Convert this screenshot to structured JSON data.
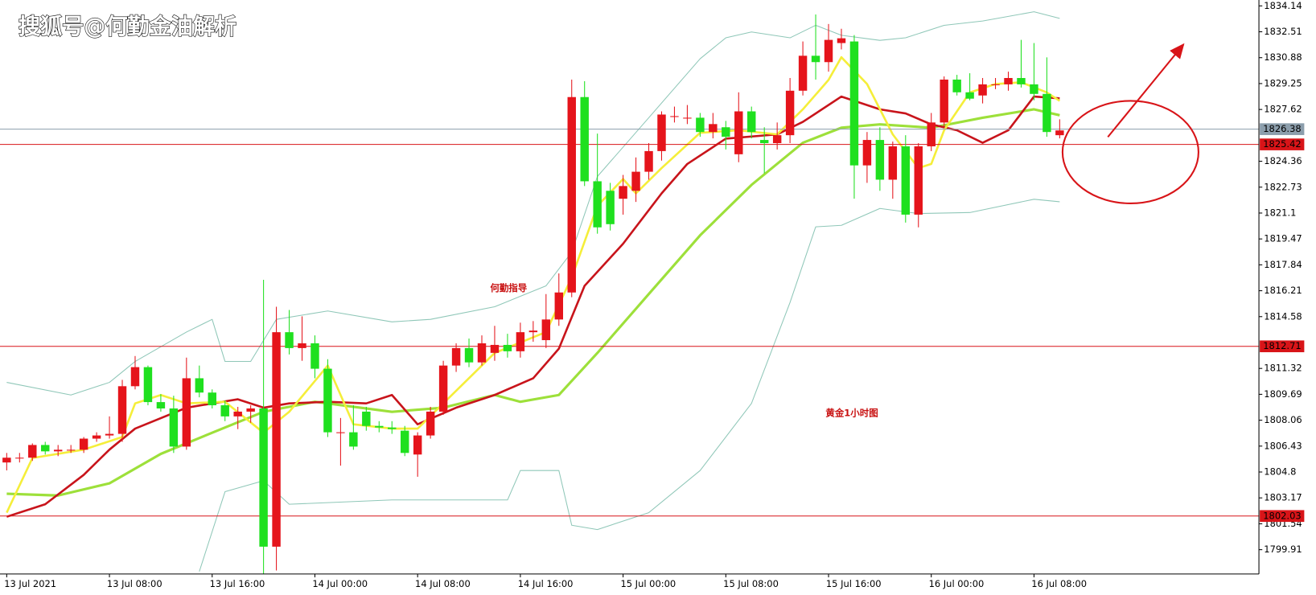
{
  "chart_data": {
    "type": "candlestick",
    "watermark": "搜狐号@何勤金油解析",
    "annotations": [
      "何勤指导",
      "黄金1小时图"
    ],
    "categories": [
      "13 Jul 2021",
      null,
      null,
      null,
      null,
      null,
      null,
      null,
      "13 Jul 08:00",
      null,
      null,
      null,
      null,
      null,
      null,
      null,
      "13 Jul 16:00",
      null,
      null,
      null,
      null,
      null,
      null,
      null,
      "14 Jul 00:00",
      null,
      null,
      null,
      null,
      null,
      null,
      null,
      "14 Jul 08:00",
      null,
      null,
      null,
      null,
      null,
      null,
      null,
      "14 Jul 16:00",
      null,
      null,
      null,
      null,
      null,
      null,
      null,
      "15 Jul 00:00",
      null,
      null,
      null,
      null,
      null,
      null,
      null,
      "15 Jul 08:00",
      null,
      null,
      null,
      null,
      null,
      null,
      null,
      "15 Jul 16:00",
      null,
      null,
      null,
      null,
      null,
      null,
      null,
      "16 Jul 00:00",
      null,
      null,
      null,
      null,
      null,
      null,
      null,
      "16 Jul 08:00",
      null,
      null
    ],
    "open": [
      1805.4,
      1805.7,
      1805.7,
      1806.5,
      1806.1,
      1806.2,
      1806.2,
      1806.9,
      1807.1,
      1807.2,
      1810.2,
      1811.4,
      1809.2,
      1808.8,
      1806.4,
      1810.7,
      1809.8,
      1809.0,
      1808.3,
      1808.6,
      1808.8,
      1800.1,
      1813.6,
      1812.6,
      1812.9,
      1811.3,
      1807.3,
      1807.3,
      1808.6,
      1807.7,
      1807.6,
      1807.4,
      1805.9,
      1807.1,
      1808.6,
      1811.5,
      1812.6,
      1811.7,
      1812.3,
      1812.8,
      1812.4,
      1813.6,
      1813.1,
      1814.4,
      1816.1,
      1828.4,
      1823.1,
      1822.5,
      1822.0,
      1822.5,
      1823.7,
      1825.0,
      1827.2,
      1827.1,
      1827.1,
      1826.2,
      1826.5,
      1824.8,
      1827.5,
      1825.7,
      1825.5,
      1826.0,
      1828.8,
      1831.0,
      1830.6,
      1831.8,
      1831.9,
      1824.1,
      1825.7,
      1823.2,
      1825.3,
      1821.0,
      1825.3,
      1826.8,
      1829.5,
      1828.7,
      1828.5,
      1829.2,
      1829.2,
      1829.6,
      1829.2,
      1828.6,
      1826.0
    ],
    "high": [
      1806.0,
      1806.0,
      1806.6,
      1806.7,
      1806.5,
      1806.5,
      1807.0,
      1807.3,
      1808.3,
      1810.6,
      1812.1,
      1811.5,
      1809.7,
      1809.6,
      1812.0,
      1811.5,
      1810.0,
      1809.3,
      1808.9,
      1809.0,
      1816.9,
      1815.2,
      1815.0,
      1814.6,
      1813.4,
      1811.9,
      1808.2,
      1809.0,
      1808.9,
      1808.0,
      1808.0,
      1807.7,
      1807.3,
      1808.9,
      1811.8,
      1812.9,
      1813.2,
      1813.4,
      1814.0,
      1813.5,
      1814.2,
      1814.3,
      1816.0,
      1817.3,
      1829.5,
      1829.4,
      1826.1,
      1823.0,
      1823.5,
      1824.6,
      1825.5,
      1827.5,
      1827.8,
      1827.9,
      1827.4,
      1827.4,
      1826.9,
      1828.7,
      1827.8,
      1826.5,
      1826.8,
      1829.6,
      1831.9,
      1833.6,
      1833.0,
      1832.7,
      1832.3,
      1826.2,
      1826.5,
      1825.6,
      1826.0,
      1825.5,
      1827.4,
      1829.7,
      1829.8,
      1829.9,
      1829.6,
      1829.6,
      1830.0,
      1832.0,
      1831.8,
      1830.9,
      1827.0
    ],
    "low": [
      1804.9,
      1805.4,
      1805.5,
      1805.9,
      1805.8,
      1806.0,
      1806.0,
      1806.7,
      1806.9,
      1806.7,
      1810.0,
      1809.0,
      1808.6,
      1806.0,
      1806.2,
      1809.5,
      1808.8,
      1808.0,
      1807.5,
      1807.9,
      1798.4,
      1798.6,
      1812.2,
      1811.8,
      1810.7,
      1807.0,
      1805.2,
      1806.2,
      1807.4,
      1807.3,
      1807.2,
      1805.8,
      1804.5,
      1806.9,
      1808.4,
      1811.1,
      1811.4,
      1811.5,
      1811.8,
      1812.0,
      1812.0,
      1813.0,
      1812.6,
      1814.0,
      1815.8,
      1822.8,
      1819.8,
      1820.0,
      1821.0,
      1821.8,
      1823.2,
      1824.4,
      1826.8,
      1826.7,
      1825.9,
      1825.8,
      1825.1,
      1824.3,
      1825.8,
      1823.6,
      1825.1,
      1825.5,
      1828.5,
      1829.5,
      1830.0,
      1831.4,
      1822.0,
      1823.0,
      1822.5,
      1822.0,
      1820.5,
      1820.2,
      1825.0,
      1826.5,
      1828.5,
      1828.2,
      1828.0,
      1828.9,
      1828.8,
      1829.0,
      1828.2,
      1825.9,
      1825.8
    ],
    "close": [
      1805.7,
      1805.7,
      1806.5,
      1806.1,
      1806.2,
      1806.2,
      1806.9,
      1807.1,
      1807.2,
      1810.2,
      1811.4,
      1809.2,
      1808.8,
      1806.4,
      1810.7,
      1809.8,
      1809.0,
      1808.3,
      1808.6,
      1808.8,
      1800.1,
      1813.6,
      1812.6,
      1812.9,
      1811.3,
      1807.3,
      1807.3,
      1806.4,
      1807.7,
      1807.6,
      1807.5,
      1806.0,
      1807.1,
      1808.6,
      1811.5,
      1812.6,
      1811.7,
      1812.9,
      1812.8,
      1812.4,
      1813.6,
      1813.7,
      1814.4,
      1816.1,
      1828.4,
      1823.1,
      1820.2,
      1820.4,
      1822.8,
      1823.7,
      1825.0,
      1827.3,
      1827.2,
      1827.1,
      1826.2,
      1826.7,
      1825.9,
      1827.5,
      1826.2,
      1825.5,
      1826.0,
      1828.8,
      1831.0,
      1830.6,
      1832.0,
      1832.1,
      1824.1,
      1825.7,
      1823.2,
      1825.3,
      1821.0,
      1825.3,
      1826.8,
      1829.5,
      1828.7,
      1828.3,
      1829.2,
      1829.2,
      1829.6,
      1829.2,
      1828.6,
      1826.2,
      1826.3
    ],
    "up_color": "#e5141b",
    "down_color": "#1fe01f",
    "overlays": [
      {
        "color": "#8fc7b8",
        "width": 1,
        "x": [
          0,
          5,
          8,
          10,
          14,
          16,
          17,
          19,
          21,
          25,
          30,
          33,
          38,
          42,
          44,
          46,
          50,
          54,
          56,
          58,
          61,
          63,
          65,
          68,
          70,
          73,
          76,
          80,
          82
        ],
        "values": [
          1810.44,
          1809.65,
          1810.44,
          1811.76,
          1813.61,
          1814.41,
          1811.76,
          1811.76,
          1814.41,
          1814.94,
          1814.25,
          1814.41,
          1815.2,
          1816.52,
          1818.64,
          1823.4,
          1827.1,
          1830.81,
          1832.13,
          1832.5,
          1832.13,
          1832.92,
          1832.29,
          1831.97,
          1832.13,
          1832.92,
          1833.19,
          1833.77,
          1833.35
        ]
      },
      {
        "color": "#8fc7b8",
        "width": 1,
        "x": [
          15,
          17,
          20,
          22,
          30,
          35,
          39,
          40,
          43,
          44,
          46,
          50,
          54,
          58,
          61,
          63,
          65,
          68,
          71,
          75,
          80,
          82
        ],
        "values": [
          1798.54,
          1803.56,
          1804.25,
          1802.77,
          1803.04,
          1803.04,
          1803.04,
          1804.89,
          1804.89,
          1801.45,
          1801.18,
          1802.24,
          1804.89,
          1809.12,
          1815.47,
          1820.23,
          1820.33,
          1821.39,
          1821.07,
          1821.13,
          1821.97,
          1821.81
        ]
      },
      {
        "color": "#9de03a",
        "width": 3,
        "x": [
          0,
          4,
          8,
          12,
          16,
          20,
          24,
          30,
          34,
          38,
          40,
          43,
          46,
          50,
          54,
          58,
          62,
          65,
          68,
          72,
          76,
          80,
          82
        ],
        "values": [
          1803.43,
          1803.32,
          1804.09,
          1805.94,
          1807.27,
          1808.59,
          1809.22,
          1808.59,
          1808.85,
          1809.65,
          1809.22,
          1809.65,
          1812.29,
          1816.0,
          1819.7,
          1822.87,
          1825.52,
          1826.47,
          1826.68,
          1826.47,
          1827.1,
          1827.63,
          1827.26
        ]
      },
      {
        "color": "#c8141b",
        "width": 2.5,
        "x": [
          0,
          3,
          6,
          8,
          10,
          14,
          18,
          20,
          22,
          25,
          28,
          30,
          32,
          35,
          38,
          41,
          43,
          45,
          48,
          51,
          53,
          56,
          60,
          62,
          65,
          68,
          70,
          72,
          74,
          76,
          78,
          80,
          82
        ],
        "values": [
          1801.98,
          1802.77,
          1804.62,
          1806.21,
          1807.53,
          1808.85,
          1809.38,
          1808.85,
          1809.12,
          1809.22,
          1809.12,
          1809.65,
          1807.8,
          1808.85,
          1809.65,
          1810.7,
          1812.56,
          1816.52,
          1819.17,
          1822.34,
          1824.19,
          1825.78,
          1826.05,
          1826.84,
          1828.43,
          1827.63,
          1827.37,
          1826.68,
          1826.31,
          1825.52,
          1826.31,
          1828.43,
          1828.32
        ]
      },
      {
        "color": "#f5ee3a",
        "width": 2.5,
        "x": [
          0,
          2,
          6,
          9,
          10,
          12,
          14,
          17,
          20,
          22,
          25,
          27,
          30,
          32,
          34,
          38,
          42,
          44,
          46,
          48,
          49,
          51,
          54,
          57,
          60,
          62,
          64,
          65,
          67,
          69,
          71,
          72,
          73,
          75,
          77,
          79,
          81,
          82
        ],
        "values": [
          1802.24,
          1805.68,
          1806.21,
          1807.0,
          1809.12,
          1809.65,
          1809.12,
          1809.22,
          1807.27,
          1808.59,
          1811.5,
          1807.8,
          1807.53,
          1807.53,
          1809.12,
          1812.29,
          1813.61,
          1817.05,
          1821.55,
          1823.24,
          1822.34,
          1823.93,
          1826.15,
          1826.31,
          1826.05,
          1827.63,
          1829.48,
          1830.91,
          1829.22,
          1826.05,
          1823.93,
          1824.19,
          1826.31,
          1828.69,
          1829.22,
          1829.33,
          1828.69,
          1828.16
        ]
      }
    ],
    "levels": [
      {
        "value": 1826.38,
        "color": "#8c9eac"
      },
      {
        "value": 1825.42,
        "color": "#d81418"
      },
      {
        "value": 1812.71,
        "color": "#d81418"
      },
      {
        "value": 1802.03,
        "color": "#d81418"
      }
    ],
    "ylim": [
      1798.38,
      1834.51
    ],
    "yticks": [
      1834.14,
      1832.51,
      1830.88,
      1829.25,
      1827.62,
      1824.36,
      1822.73,
      1821.1,
      1819.47,
      1817.84,
      1816.21,
      1814.58,
      1811.32,
      1809.69,
      1808.06,
      1806.43,
      1804.8,
      1803.17,
      1801.54,
      1799.91
    ]
  }
}
